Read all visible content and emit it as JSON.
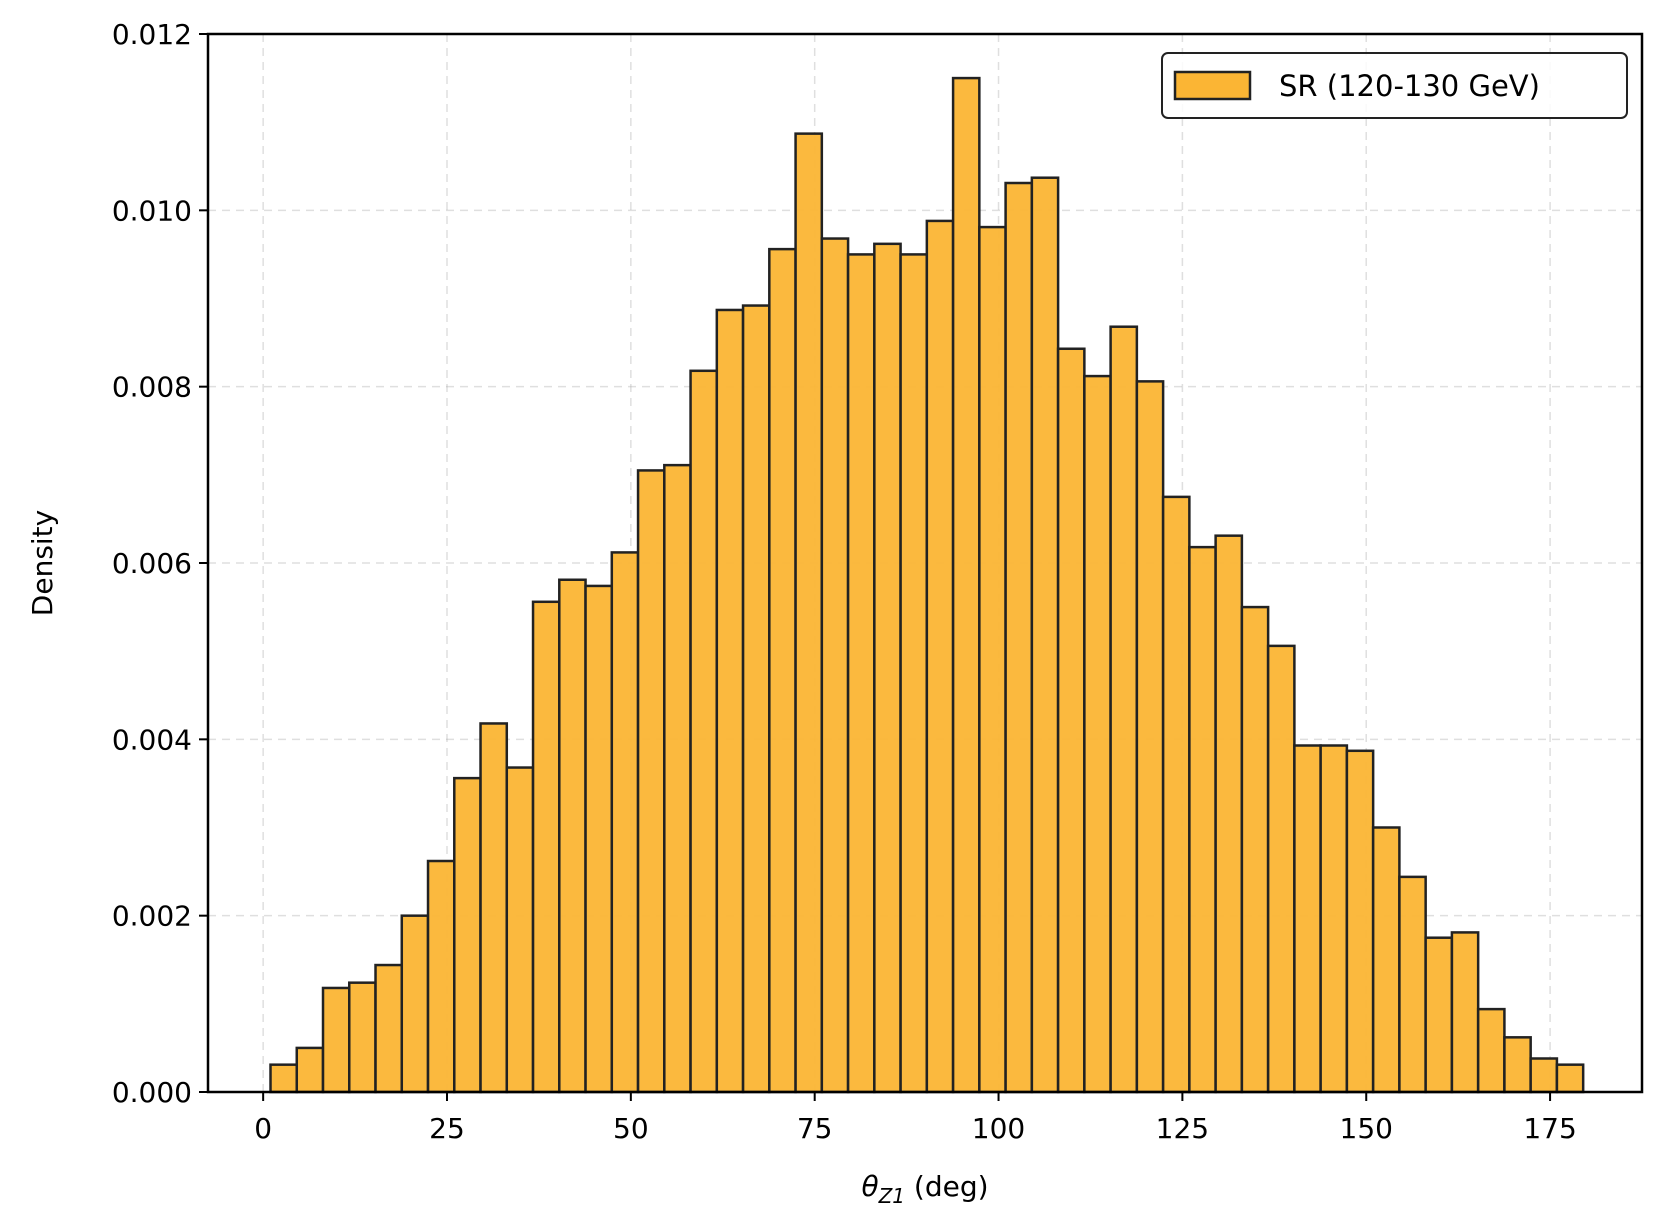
{
  "chart_data": {
    "type": "bar",
    "subtype": "histogram",
    "xlabel": {
      "symbol": "θ",
      "subscript": "Z1",
      "unit": " (deg)"
    },
    "ylabel": "Density",
    "xlim": [
      -7.5,
      187.5
    ],
    "ylim": [
      0,
      0.012
    ],
    "xticks": [
      0,
      25,
      50,
      75,
      100,
      125,
      150,
      175
    ],
    "xtick_labels": [
      "0",
      "25",
      "50",
      "75",
      "100",
      "125",
      "150",
      "175"
    ],
    "yticks": [
      0,
      0.002,
      0.004,
      0.006,
      0.008,
      0.01,
      0.012
    ],
    "ytick_labels": [
      "0.000",
      "0.002",
      "0.004",
      "0.006",
      "0.008",
      "0.010",
      "0.012"
    ],
    "grid": true,
    "legend_position": "top-right",
    "bin_edges_start": 1.0,
    "bin_width": 3.57,
    "series": [
      {
        "name": "SR (120-130 GeV)",
        "color": "#fbb534",
        "edgecolor": "#222222",
        "values": [
          0.00031,
          0.0005,
          0.00118,
          0.00124,
          0.00144,
          0.002,
          0.00262,
          0.00356,
          0.00418,
          0.00368,
          0.00556,
          0.00581,
          0.00574,
          0.00612,
          0.00705,
          0.00711,
          0.00818,
          0.00887,
          0.00892,
          0.00956,
          0.01087,
          0.00968,
          0.0095,
          0.00962,
          0.0095,
          0.00988,
          0.0115,
          0.00981,
          0.01031,
          0.01037,
          0.00843,
          0.00812,
          0.00868,
          0.00806,
          0.00675,
          0.00618,
          0.00631,
          0.0055,
          0.00506,
          0.00393,
          0.00393,
          0.00387,
          0.003,
          0.00244,
          0.00175,
          0.00181,
          0.00094,
          0.00062,
          0.00038,
          0.00031
        ]
      }
    ]
  }
}
